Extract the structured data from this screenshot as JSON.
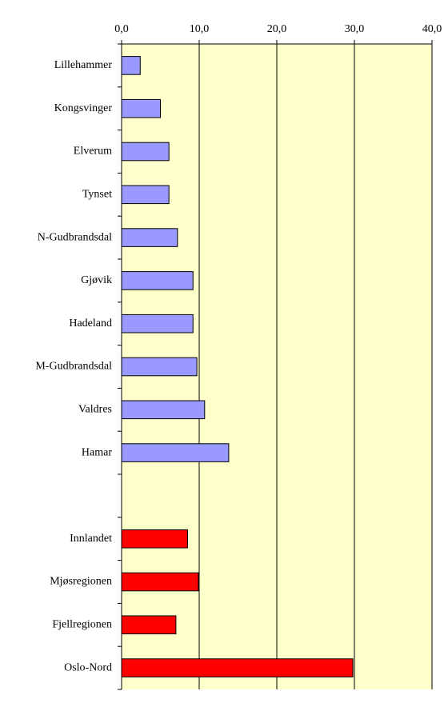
{
  "chart_data": {
    "type": "hbar",
    "categories": [
      "Lillehammer",
      "Kongsvinger",
      "Elverum",
      "Tynset",
      "N-Gudbrandsdal",
      "Gjøvik",
      "Hadeland",
      "M-Gudbrandsdal",
      "Valdres",
      "Hamar",
      null,
      "Innlandet",
      "Mjøsregionen",
      "Fjellregionen",
      "Oslo-Nord"
    ],
    "values": [
      2.4,
      5.0,
      6.1,
      6.1,
      7.2,
      9.2,
      9.2,
      9.7,
      10.7,
      13.8,
      null,
      8.5,
      9.9,
      7.0,
      29.8
    ],
    "colors": [
      "#9999ff",
      "#9999ff",
      "#9999ff",
      "#9999ff",
      "#9999ff",
      "#9999ff",
      "#9999ff",
      "#9999ff",
      "#9999ff",
      "#9999ff",
      null,
      "#ff0000",
      "#ff0000",
      "#ff0000",
      "#ff0000"
    ],
    "xlim": [
      0,
      40
    ],
    "xticks": [
      {
        "value": 0,
        "label": "0,0"
      },
      {
        "value": 10,
        "label": "10,0"
      },
      {
        "value": 20,
        "label": "20,0"
      },
      {
        "value": 30,
        "label": "30,0"
      },
      {
        "value": 40,
        "label": "40,0"
      }
    ],
    "grid": true,
    "background": "#ffffcc"
  }
}
